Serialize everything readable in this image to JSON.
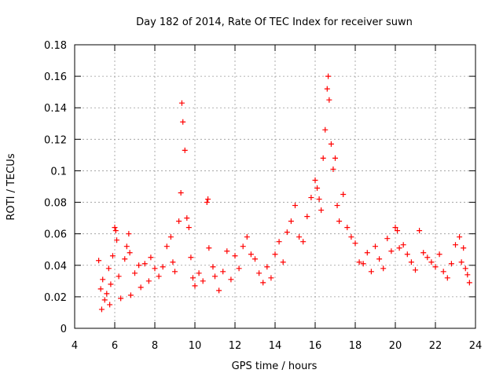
{
  "chart_data": {
    "type": "scatter",
    "title": "Day 182 of 2014, Rate Of TEC Index for receiver suwn",
    "xlabel": "GPS time / hours",
    "ylabel": "ROTI / TECUs",
    "xlim": [
      4,
      24
    ],
    "ylim": [
      0,
      0.18
    ],
    "x_ticks": [
      "4",
      "6",
      "8",
      "10",
      "12",
      "14",
      "16",
      "18",
      "20",
      "22",
      "24"
    ],
    "y_ticks": [
      "0",
      "0.02",
      "0.04",
      "0.06",
      "0.08",
      "0.1",
      "0.12",
      "0.14",
      "0.16",
      "0.18"
    ],
    "x_tick_values": [
      4,
      6,
      8,
      10,
      12,
      14,
      16,
      18,
      20,
      22,
      24
    ],
    "y_tick_values": [
      0,
      0.02,
      0.04,
      0.06,
      0.08,
      0.1,
      0.12,
      0.14,
      0.16,
      0.18
    ],
    "grid": true,
    "marker": "+",
    "series": [
      {
        "name": "ROTI",
        "color": "#ff0000",
        "x": [
          5.2,
          5.3,
          5.35,
          5.4,
          5.5,
          5.6,
          5.7,
          5.75,
          5.8,
          5.9,
          6.0,
          6.05,
          6.1,
          6.2,
          6.3,
          6.5,
          6.6,
          6.7,
          6.75,
          6.8,
          7.0,
          7.2,
          7.3,
          7.5,
          7.7,
          7.8,
          8.0,
          8.2,
          8.4,
          8.6,
          8.8,
          8.9,
          9.0,
          9.2,
          9.3,
          9.35,
          9.4,
          9.5,
          9.6,
          9.7,
          9.8,
          9.9,
          10.0,
          10.2,
          10.4,
          10.6,
          10.65,
          10.7,
          10.9,
          11.0,
          11.2,
          11.4,
          11.6,
          11.8,
          12.0,
          12.2,
          12.4,
          12.6,
          12.8,
          13.0,
          13.2,
          13.4,
          13.6,
          13.8,
          14.0,
          14.2,
          14.4,
          14.6,
          14.8,
          15.0,
          15.2,
          15.4,
          15.6,
          15.8,
          16.0,
          16.1,
          16.2,
          16.3,
          16.4,
          16.5,
          16.6,
          16.65,
          16.7,
          16.8,
          16.9,
          17.0,
          17.1,
          17.2,
          17.4,
          17.6,
          17.8,
          18.0,
          18.2,
          18.4,
          18.6,
          18.8,
          19.0,
          19.2,
          19.4,
          19.6,
          19.8,
          20.0,
          20.1,
          20.2,
          20.4,
          20.6,
          20.8,
          21.0,
          21.2,
          21.4,
          21.6,
          21.8,
          22.0,
          22.2,
          22.4,
          22.6,
          22.8,
          23.0,
          23.2,
          23.3,
          23.4,
          23.5,
          23.6,
          23.7
        ],
        "y": [
          0.043,
          0.025,
          0.012,
          0.031,
          0.018,
          0.022,
          0.038,
          0.015,
          0.028,
          0.046,
          0.064,
          0.062,
          0.056,
          0.033,
          0.019,
          0.044,
          0.052,
          0.06,
          0.048,
          0.021,
          0.035,
          0.04,
          0.026,
          0.041,
          0.03,
          0.045,
          0.038,
          0.033,
          0.039,
          0.052,
          0.058,
          0.042,
          0.036,
          0.068,
          0.086,
          0.143,
          0.131,
          0.113,
          0.07,
          0.064,
          0.045,
          0.032,
          0.027,
          0.035,
          0.03,
          0.08,
          0.082,
          0.051,
          0.039,
          0.033,
          0.024,
          0.036,
          0.049,
          0.031,
          0.046,
          0.038,
          0.052,
          0.058,
          0.047,
          0.044,
          0.035,
          0.029,
          0.039,
          0.032,
          0.047,
          0.055,
          0.042,
          0.061,
          0.068,
          0.078,
          0.058,
          0.055,
          0.071,
          0.083,
          0.094,
          0.089,
          0.082,
          0.075,
          0.108,
          0.126,
          0.152,
          0.16,
          0.145,
          0.117,
          0.101,
          0.108,
          0.078,
          0.068,
          0.085,
          0.064,
          0.058,
          0.054,
          0.042,
          0.041,
          0.048,
          0.036,
          0.052,
          0.044,
          0.038,
          0.057,
          0.049,
          0.064,
          0.062,
          0.051,
          0.053,
          0.047,
          0.042,
          0.037,
          0.062,
          0.048,
          0.045,
          0.042,
          0.039,
          0.047,
          0.036,
          0.032,
          0.041,
          0.053,
          0.058,
          0.042,
          0.051,
          0.038,
          0.034,
          0.029
        ]
      }
    ]
  }
}
